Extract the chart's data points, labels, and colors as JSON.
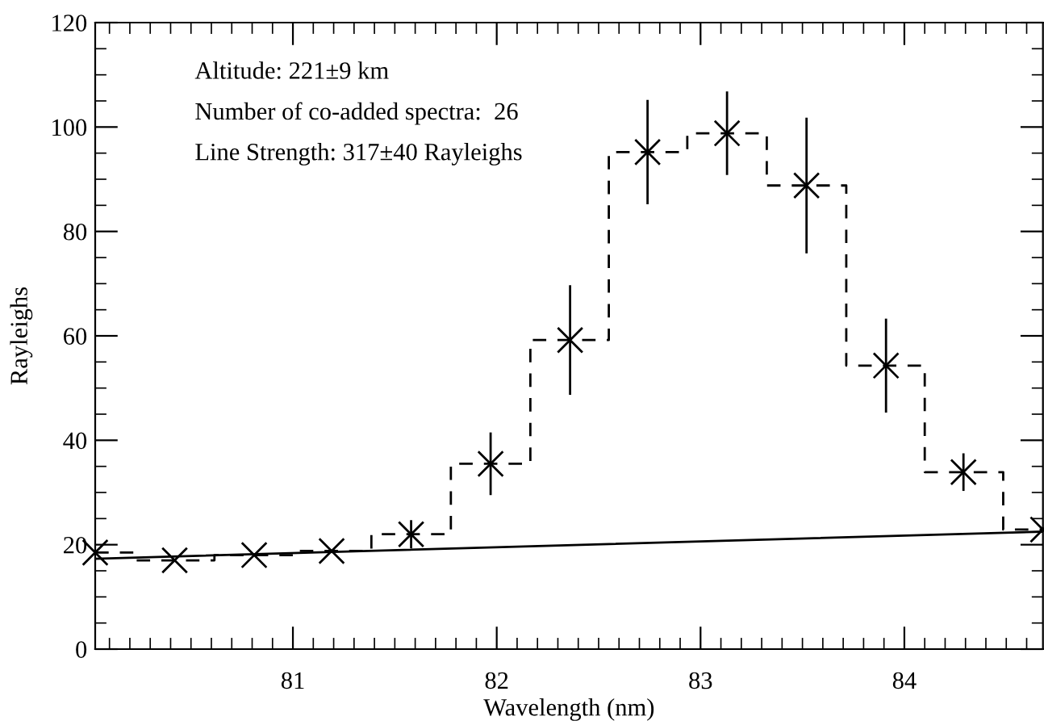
{
  "chart_data": {
    "type": "line",
    "xlabel": "Wavelength (nm)",
    "ylabel": "Rayleighs",
    "xlim": [
      80.03,
      84.68
    ],
    "xticks": [
      81,
      82,
      83,
      84
    ],
    "ylim": [
      0,
      120
    ],
    "yticks": [
      0,
      20,
      40,
      60,
      80,
      100,
      120
    ],
    "grid": false,
    "annotations": [
      "Altitude: 221±9 km",
      "Number of co-added spectra:  26",
      "Line Strength: 317±40 Rayleighs"
    ],
    "series": [
      {
        "type": "step",
        "color": "#000000",
        "line_style": "dashed",
        "x": [
          80.03,
          80.42,
          80.81,
          81.19,
          81.58,
          81.97,
          82.36,
          82.74,
          83.13,
          83.52,
          83.91,
          84.29,
          84.68
        ],
        "values": [
          18.5,
          17.0,
          18.0,
          18.8,
          22.0,
          35.5,
          59.2,
          95.2,
          98.8,
          88.8,
          54.3,
          33.9,
          22.9
        ]
      },
      {
        "type": "scatter",
        "color": "#000000",
        "marker": "cross",
        "x": [
          80.03,
          80.42,
          80.81,
          81.19,
          81.58,
          81.97,
          82.36,
          82.74,
          83.13,
          83.52,
          83.91,
          84.29,
          84.68
        ],
        "values": [
          18.5,
          17.0,
          18.0,
          18.8,
          22.0,
          35.5,
          59.2,
          95.2,
          98.8,
          88.8,
          54.3,
          33.9,
          22.9
        ],
        "errors": [
          null,
          null,
          null,
          null,
          2.7,
          6,
          10.5,
          10,
          8,
          13,
          9,
          3.6,
          null
        ]
      },
      {
        "color": "#000000",
        "line_style": "solid",
        "x": [
          80.03,
          84.68
        ],
        "values": [
          17.3,
          22.5
        ]
      }
    ]
  }
}
